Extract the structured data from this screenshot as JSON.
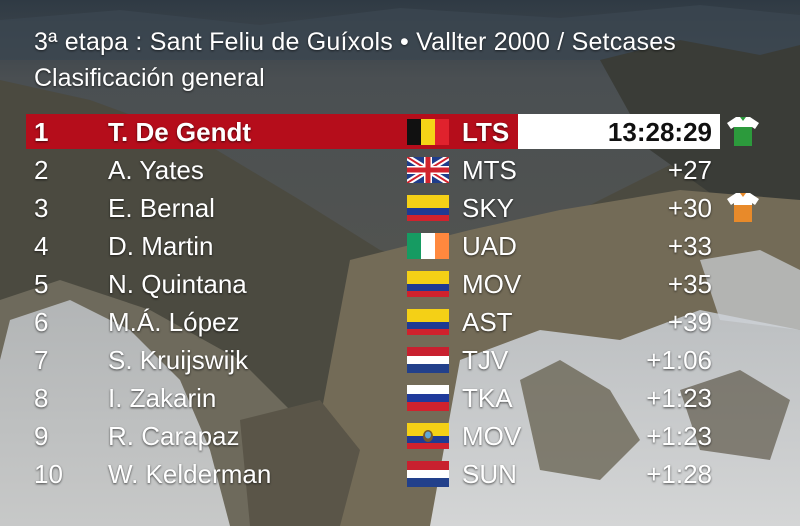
{
  "header": {
    "title": "3ª etapa : Sant Feliu de Guíxols • Vallter 2000 / Setcases",
    "subtitle": "Clasificación general"
  },
  "colors": {
    "leader_bar": "#b50d1b",
    "leader_time_bg": "#ffffff",
    "text": "#ffffff",
    "green_jersey": "#2c9a3c",
    "orange_jersey": "#e88a2a"
  },
  "standings": [
    {
      "pos": "1",
      "name": "T. De Gendt",
      "flag": "belgium-flag",
      "team": "LTS",
      "time": "13:28:29",
      "jersey": "green-jersey-icon"
    },
    {
      "pos": "2",
      "name": "A. Yates",
      "flag": "uk-flag",
      "team": "MTS",
      "time": "+27"
    },
    {
      "pos": "3",
      "name": "E. Bernal",
      "flag": "colombia-flag",
      "team": "SKY",
      "time": "+30",
      "jersey": "orange-jersey-icon"
    },
    {
      "pos": "4",
      "name": "D. Martin",
      "flag": "ireland-flag",
      "team": "UAD",
      "time": "+33"
    },
    {
      "pos": "5",
      "name": "N. Quintana",
      "flag": "colombia-flag",
      "team": "MOV",
      "time": "+35"
    },
    {
      "pos": "6",
      "name": "M.Á. López",
      "flag": "colombia-flag",
      "team": "AST",
      "time": "+39"
    },
    {
      "pos": "7",
      "name": "S. Kruijswijk",
      "flag": "netherlands-flag",
      "team": "TJV",
      "time": "+1:06"
    },
    {
      "pos": "8",
      "name": "I. Zakarin",
      "flag": "russia-flag",
      "team": "TKA",
      "time": "+1:23"
    },
    {
      "pos": "9",
      "name": "R. Carapaz",
      "flag": "ecuador-flag",
      "team": "MOV",
      "time": "+1:23"
    },
    {
      "pos": "10",
      "name": "W. Kelderman",
      "flag": "netherlands-flag",
      "team": "SUN",
      "time": "+1:28"
    }
  ]
}
